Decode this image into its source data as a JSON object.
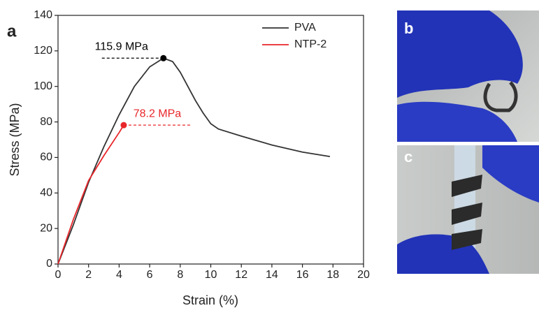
{
  "chart_data": {
    "type": "line",
    "panel_labels": [
      "a",
      "b",
      "c"
    ],
    "xlabel": "Strain (%)",
    "ylabel": "Stress (MPa)",
    "xlim": [
      0,
      20
    ],
    "xticks": [
      0,
      2,
      4,
      6,
      8,
      10,
      12,
      14,
      16,
      18,
      20
    ],
    "ylim": [
      0,
      140
    ],
    "yticks": [
      0,
      20,
      40,
      60,
      80,
      100,
      120,
      140
    ],
    "legend": "upper right",
    "series": [
      {
        "name": "PVA",
        "color": "#333333",
        "x": [
          0,
          1,
          2,
          3,
          4,
          5,
          6,
          6.9,
          7.5,
          8,
          8.5,
          9,
          9.5,
          10,
          10.5,
          12,
          14,
          16,
          17.8
        ],
        "values": [
          0,
          22,
          46,
          66,
          84,
          100,
          111,
          115.9,
          114,
          108,
          100,
          92,
          85,
          79,
          76,
          72,
          67,
          63,
          60.5
        ],
        "annotation": "115.9 MPa",
        "marker_index": 7
      },
      {
        "name": "NTP-2",
        "color": "#e8262a",
        "x": [
          0,
          1,
          2,
          3,
          4,
          4.3
        ],
        "values": [
          0,
          25,
          47,
          61,
          74,
          78.2
        ],
        "annotation": "78.2 MPa",
        "marker_index": 5
      }
    ]
  }
}
